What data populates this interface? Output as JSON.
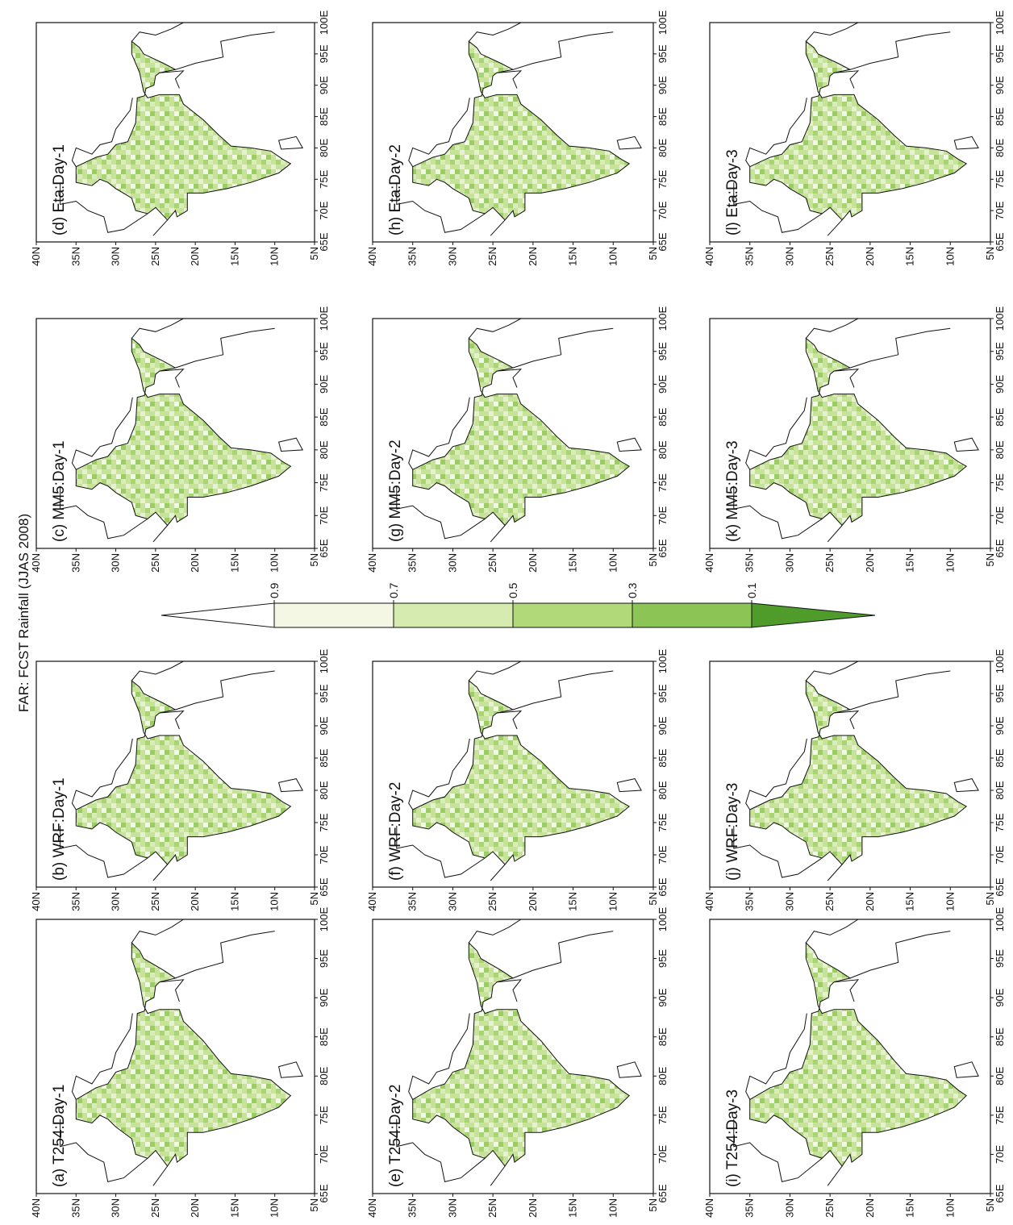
{
  "title": "FAR: FCST Rainfall (JJAS 2008)",
  "colorbar": {
    "ticks": [
      0.9,
      0.7,
      0.5,
      0.3,
      0.1
    ],
    "colors": [
      "#ffffff",
      "#f3f7e4",
      "#d5ebb0",
      "#b2d979",
      "#8dc456",
      "#4f9c2a"
    ]
  },
  "axes": {
    "lat_ticks": [
      {
        "value": 40,
        "label": "40N"
      },
      {
        "value": 35,
        "label": "35N"
      },
      {
        "value": 30,
        "label": "30N"
      },
      {
        "value": 25,
        "label": "25N"
      },
      {
        "value": 20,
        "label": "20N"
      },
      {
        "value": 15,
        "label": "15N"
      },
      {
        "value": 10,
        "label": "10N"
      },
      {
        "value": 5,
        "label": "5N"
      }
    ],
    "lon_ticks": [
      {
        "value": 65,
        "label": "65E"
      },
      {
        "value": 70,
        "label": "70E"
      },
      {
        "value": 75,
        "label": "75E"
      },
      {
        "value": 80,
        "label": "80E"
      },
      {
        "value": 85,
        "label": "85E"
      },
      {
        "value": 90,
        "label": "90E"
      },
      {
        "value": 95,
        "label": "95E"
      },
      {
        "value": 100,
        "label": "100E"
      }
    ]
  },
  "panels": [
    {
      "label": "(a) T254:Day-1"
    },
    {
      "label": "(b) WRF:Day-1"
    },
    {
      "label": "(c) MM5:Day-1"
    },
    {
      "label": "(d) Eta:Day-1"
    },
    {
      "label": "(e) T254:Day-2"
    },
    {
      "label": "(f) WRF:Day-2"
    },
    {
      "label": "(g) MM5:Day-2"
    },
    {
      "label": "(h) Eta:Day-2"
    },
    {
      "label": "(i) T254:Day-3"
    },
    {
      "label": "(j) WRF:Day-3"
    },
    {
      "label": "(k) MM5:Day-3"
    },
    {
      "label": "(l) Eta:Day-3"
    }
  ]
}
